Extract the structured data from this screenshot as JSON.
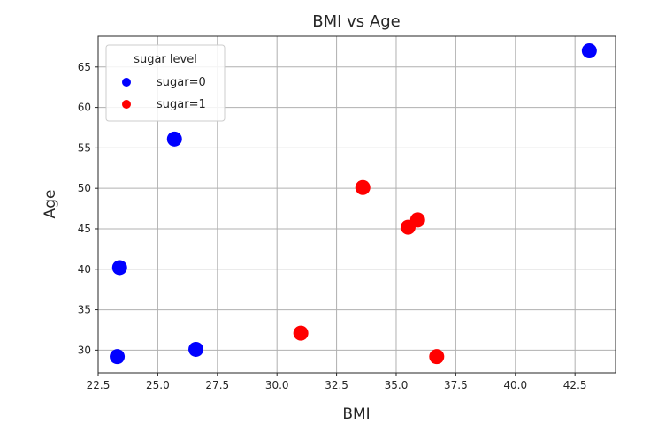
{
  "chart_data": {
    "type": "scatter",
    "title": "BMI vs Age",
    "xlabel": "BMI",
    "ylabel": "Age",
    "xlim": [
      22.5,
      44.2
    ],
    "ylim": [
      27.2,
      68.8
    ],
    "xticks": [
      "22.5",
      "25.0",
      "27.5",
      "30.0",
      "32.5",
      "35.0",
      "37.5",
      "40.0",
      "42.5"
    ],
    "yticks": [
      "30",
      "35",
      "40",
      "45",
      "50",
      "55",
      "60",
      "65"
    ],
    "grid": true,
    "legend": {
      "title": "sugar level",
      "position": "top-left"
    },
    "series": [
      {
        "name": "sugar=0",
        "color": "#0000ff",
        "points": [
          {
            "x": 43.1,
            "y": 67.0
          },
          {
            "x": 25.7,
            "y": 56.1
          },
          {
            "x": 23.4,
            "y": 40.2
          },
          {
            "x": 26.6,
            "y": 30.1
          },
          {
            "x": 23.3,
            "y": 29.2
          }
        ]
      },
      {
        "name": "sugar=1",
        "color": "#ff0000",
        "points": [
          {
            "x": 33.6,
            "y": 50.1
          },
          {
            "x": 35.9,
            "y": 46.1
          },
          {
            "x": 35.5,
            "y": 45.2
          },
          {
            "x": 31.0,
            "y": 32.1
          },
          {
            "x": 36.7,
            "y": 29.2
          }
        ]
      }
    ]
  }
}
